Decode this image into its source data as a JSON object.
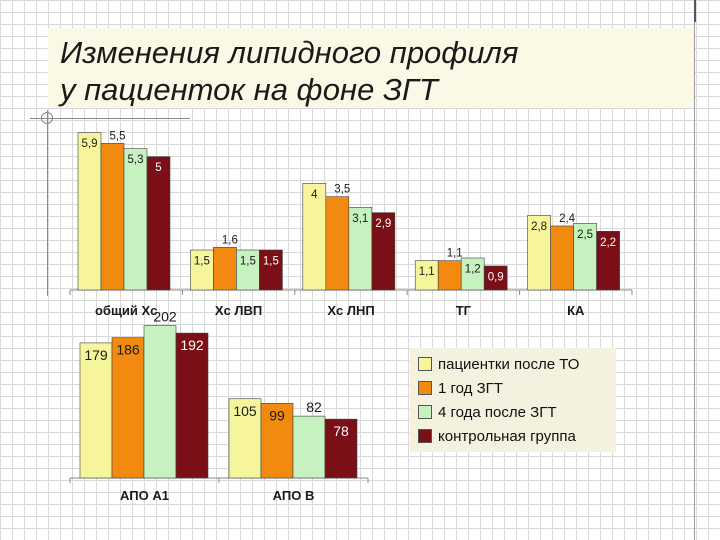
{
  "title": "Изменения липидного профиля\nу пациенток на фоне ЗГТ",
  "colors": {
    "series": [
      "#f7f59b",
      "#f28a0f",
      "#c6f2c0",
      "#7a0f17"
    ],
    "stroke": "#404040"
  },
  "legend": {
    "placement": "bottom-right",
    "items": [
      "пациентки после ТО",
      "1 год ЗГТ",
      "4 года после ЗГТ",
      "контрольная группа"
    ]
  },
  "chart_data": [
    {
      "type": "bar",
      "title": "",
      "xlabel": "",
      "ylabel": "",
      "grid": false,
      "categories": [
        "общий Хс",
        "Хс ЛВП",
        "Хс ЛНП",
        "ТГ",
        "КА"
      ],
      "ylim": [
        0,
        6
      ],
      "series": [
        {
          "name": "пациентки после ТО",
          "values": [
            5.9,
            1.5,
            4,
            1.1,
            2.8
          ],
          "labels": [
            "5,9",
            "1,5",
            "4",
            "1,1",
            "2,8"
          ]
        },
        {
          "name": "1 год ЗГТ",
          "values": [
            5.5,
            1.6,
            3.5,
            1.1,
            2.4
          ],
          "labels": [
            "5,5",
            "1,6",
            "3,5",
            "1,1",
            "2,4"
          ]
        },
        {
          "name": "4 года после ЗГТ",
          "values": [
            5.3,
            1.5,
            3.1,
            1.2,
            2.5
          ],
          "labels": [
            "5,3",
            "1,5",
            "3,1",
            "1,2",
            "2,5"
          ]
        },
        {
          "name": "контрольная группа",
          "values": [
            5,
            1.5,
            2.9,
            0.9,
            2.2
          ],
          "labels": [
            "5",
            "1,5",
            "2,9",
            "0,9",
            "2,2"
          ]
        }
      ]
    },
    {
      "type": "bar",
      "title": "",
      "xlabel": "",
      "ylabel": "",
      "grid": false,
      "categories": [
        "АПО А1",
        "АПО В"
      ],
      "ylim": [
        0,
        212
      ],
      "series": [
        {
          "name": "пациентки после ТО",
          "values": [
            179,
            105
          ],
          "labels": [
            "179",
            "105"
          ]
        },
        {
          "name": "1 год ЗГТ",
          "values": [
            186,
            99
          ],
          "labels": [
            "186",
            "99"
          ]
        },
        {
          "name": "4 года после ЗГТ",
          "values": [
            202,
            82
          ],
          "labels": [
            "202",
            "82"
          ]
        },
        {
          "name": "контрольная группа",
          "values": [
            192,
            78
          ],
          "labels": [
            "192",
            "78"
          ]
        }
      ]
    }
  ]
}
